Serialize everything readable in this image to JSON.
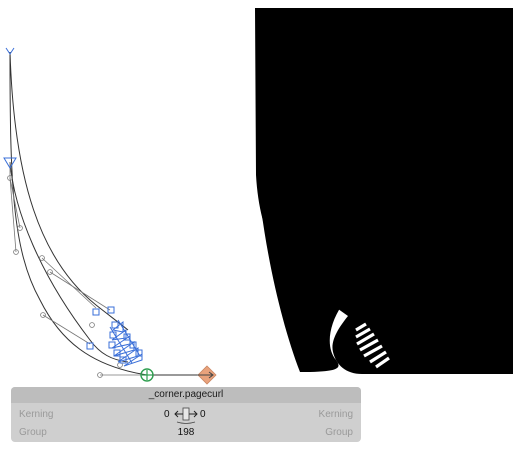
{
  "glyph": {
    "name": "_corner.pagecurl",
    "left_sidebearing": "0",
    "right_sidebearing": "0",
    "width": "198"
  },
  "labels": {
    "kerning_left": "Kerning",
    "group_left": "Group",
    "kerning_right": "Kerning",
    "group_right": "Group"
  },
  "icons": {
    "metrics": "sidebearing-arrows-icon"
  },
  "colors": {
    "node_blue": "#3a6fd8",
    "handle_gray": "#777777",
    "start_node_green": "#2e9e4f",
    "anchor_orange": "#e9a27c",
    "panel_bg": "#cfcfcf",
    "panel_header": "#bdbdbd",
    "preview_fill": "#000000"
  }
}
